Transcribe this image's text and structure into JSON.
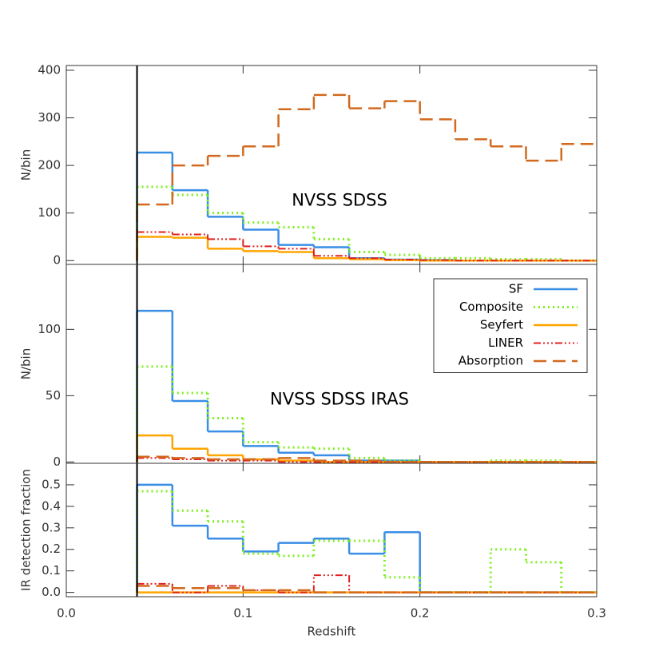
{
  "chart_data": [
    {
      "type": "histogram",
      "ylabel": "N/bin",
      "annotation": "NVSS  SDSS",
      "xlim": [
        0,
        0.3
      ],
      "xticks": [
        {
          "value": 0,
          "label": "0.0"
        },
        0.1,
        0.2,
        {
          "value": 0.3,
          "label": "0.3"
        }
      ],
      "ylim": [
        -8,
        410
      ],
      "yticks": [
        0,
        100,
        200,
        300,
        400
      ],
      "vline": 0.04,
      "bins": [
        0.04,
        0.06,
        0.08,
        0.1,
        0.12,
        0.14,
        0.16,
        0.18,
        0.2,
        0.22,
        0.24,
        0.26,
        0.28,
        0.3
      ],
      "series": [
        {
          "name": "SF",
          "color": "#3a8ee6",
          "linestyle": "solid",
          "values": [
            227,
            148,
            92,
            65,
            33,
            28,
            5,
            2,
            1,
            0,
            0,
            0,
            0
          ]
        },
        {
          "name": "Composite",
          "color": "#7ff020",
          "linestyle": "dotted",
          "values": [
            155,
            138,
            100,
            80,
            70,
            45,
            18,
            12,
            5,
            5,
            3,
            3,
            0
          ]
        },
        {
          "name": "Seyfert",
          "color": "#ffa500",
          "linestyle": "solid",
          "values": [
            50,
            48,
            25,
            20,
            18,
            5,
            3,
            1,
            0,
            0,
            0,
            0,
            0
          ]
        },
        {
          "name": "LINER",
          "color": "#e02020",
          "linestyle": "dashdotdot",
          "values": [
            60,
            55,
            45,
            30,
            25,
            10,
            5,
            2,
            1,
            0,
            0,
            0,
            0
          ]
        },
        {
          "name": "Absorption",
          "color": "#d2691e",
          "linestyle": "dashed",
          "values": [
            118,
            200,
            220,
            240,
            318,
            348,
            320,
            335,
            297,
            255,
            240,
            210,
            245
          ]
        }
      ]
    },
    {
      "type": "histogram",
      "ylabel": "N/bin",
      "annotation": "NVSS  SDSS  IRAS",
      "legend": "upper right",
      "xlim": [
        0,
        0.3
      ],
      "xticks": [
        {
          "value": 0,
          "label": "0.0"
        },
        0.1,
        0.2,
        {
          "value": 0.3,
          "label": "0.3"
        }
      ],
      "ylim": [
        -1,
        149
      ],
      "yticks": [
        0,
        50,
        100
      ],
      "vline": 0.04,
      "bins": [
        0.04,
        0.06,
        0.08,
        0.1,
        0.12,
        0.14,
        0.16,
        0.18,
        0.2,
        0.22,
        0.24,
        0.26,
        0.28,
        0.3
      ],
      "series": [
        {
          "name": "SF",
          "color": "#3a8ee6",
          "linestyle": "solid",
          "values": [
            114,
            46,
            23,
            12,
            7,
            5,
            1,
            1,
            0,
            0,
            0,
            0,
            0
          ]
        },
        {
          "name": "Composite",
          "color": "#7ff020",
          "linestyle": "dotted",
          "values": [
            72,
            52,
            33,
            15,
            11,
            10,
            3,
            1,
            0,
            0,
            1,
            1,
            0
          ]
        },
        {
          "name": "Seyfert",
          "color": "#ffa500",
          "linestyle": "solid",
          "values": [
            20,
            10,
            5,
            2,
            1,
            0,
            0,
            0,
            0,
            0,
            0,
            0,
            0
          ]
        },
        {
          "name": "LINER",
          "color": "#e02020",
          "linestyle": "dashdotdot",
          "values": [
            3,
            2,
            1,
            1,
            0,
            0,
            0,
            0,
            0,
            0,
            0,
            0,
            0
          ]
        },
        {
          "name": "Absorption",
          "color": "#d2691e",
          "linestyle": "dashed",
          "values": [
            4,
            3,
            2,
            2,
            3,
            1,
            1,
            0,
            0,
            0,
            0,
            0,
            0
          ]
        }
      ]
    },
    {
      "type": "histogram",
      "ylabel": "IR detection fraction",
      "xlabel": "Redshift",
      "show_xtick_labels": true,
      "xlim": [
        0,
        0.3
      ],
      "xticks": [
        {
          "value": 0,
          "label": "0.0"
        },
        0.1,
        0.2,
        {
          "value": 0.3,
          "label": "0.3"
        }
      ],
      "ylim": [
        -0.02,
        0.6
      ],
      "yticks": [
        {
          "value": 0,
          "label": "0.0"
        },
        0.1,
        0.2,
        0.3,
        0.4,
        0.5
      ],
      "vline": 0.04,
      "bins": [
        0.04,
        0.06,
        0.08,
        0.1,
        0.12,
        0.14,
        0.16,
        0.18,
        0.2,
        0.22,
        0.24,
        0.26,
        0.28,
        0.3
      ],
      "series": [
        {
          "name": "SF",
          "color": "#3a8ee6",
          "linestyle": "solid",
          "values": [
            0.5,
            0.31,
            0.25,
            0.19,
            0.23,
            0.25,
            0.18,
            0.28,
            0,
            0,
            0,
            0,
            0
          ]
        },
        {
          "name": "Composite",
          "color": "#7ff020",
          "linestyle": "dotted",
          "values": [
            0.47,
            0.38,
            0.33,
            0.18,
            0.17,
            0.24,
            0.24,
            0.07,
            0,
            0,
            0.2,
            0.14,
            0
          ]
        },
        {
          "name": "Seyfert",
          "color": "#ffa500",
          "linestyle": "solid",
          "values": [
            0,
            0,
            0,
            0,
            0,
            0,
            0,
            0,
            0,
            0,
            0,
            0,
            0
          ]
        },
        {
          "name": "LINER",
          "color": "#e02020",
          "linestyle": "dashdotdot",
          "values": [
            0.04,
            0,
            0.03,
            0.01,
            0,
            0.08,
            0,
            0,
            0,
            0,
            0,
            0,
            0
          ]
        },
        {
          "name": "Absorption",
          "color": "#d2691e",
          "linestyle": "dashed",
          "values": [
            0.03,
            0.02,
            0.02,
            0.01,
            0.01,
            0,
            0,
            0,
            0,
            0,
            0,
            0,
            0
          ]
        }
      ]
    }
  ]
}
